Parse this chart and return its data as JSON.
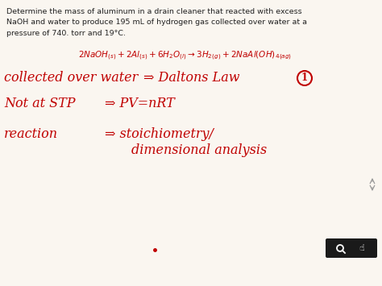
{
  "bg_color": "#faf6f0",
  "text_color_black": "#222222",
  "text_color_red": "#c00000",
  "problem_line1": "Determine the mass of aluminum in a drain cleaner that reacted with excess",
  "problem_line2": "NaOH and water to produce 195 mL of hydrogen gas collected over water at a",
  "problem_line3": "pressure of 740. torr and 19°C.",
  "eq_text": "2NaOH(s) + 2Al(s) + 6H₂O(l) →3H₂(g) + 2NaAl(OH)₄(ag)",
  "handline1a": "collected over water",
  "handline1b": "⇒ Daltons Law",
  "circle_label": "1",
  "handline2a": "Not at STP",
  "handline2b": "⇒ PV=nRT",
  "handline3a": "reaction",
  "handline3b": "⇒ stoichiometry/",
  "handline3c": "dimensional analysis",
  "dot_color": "#c00000",
  "figsize": [
    4.74,
    3.55
  ],
  "dpi": 100
}
